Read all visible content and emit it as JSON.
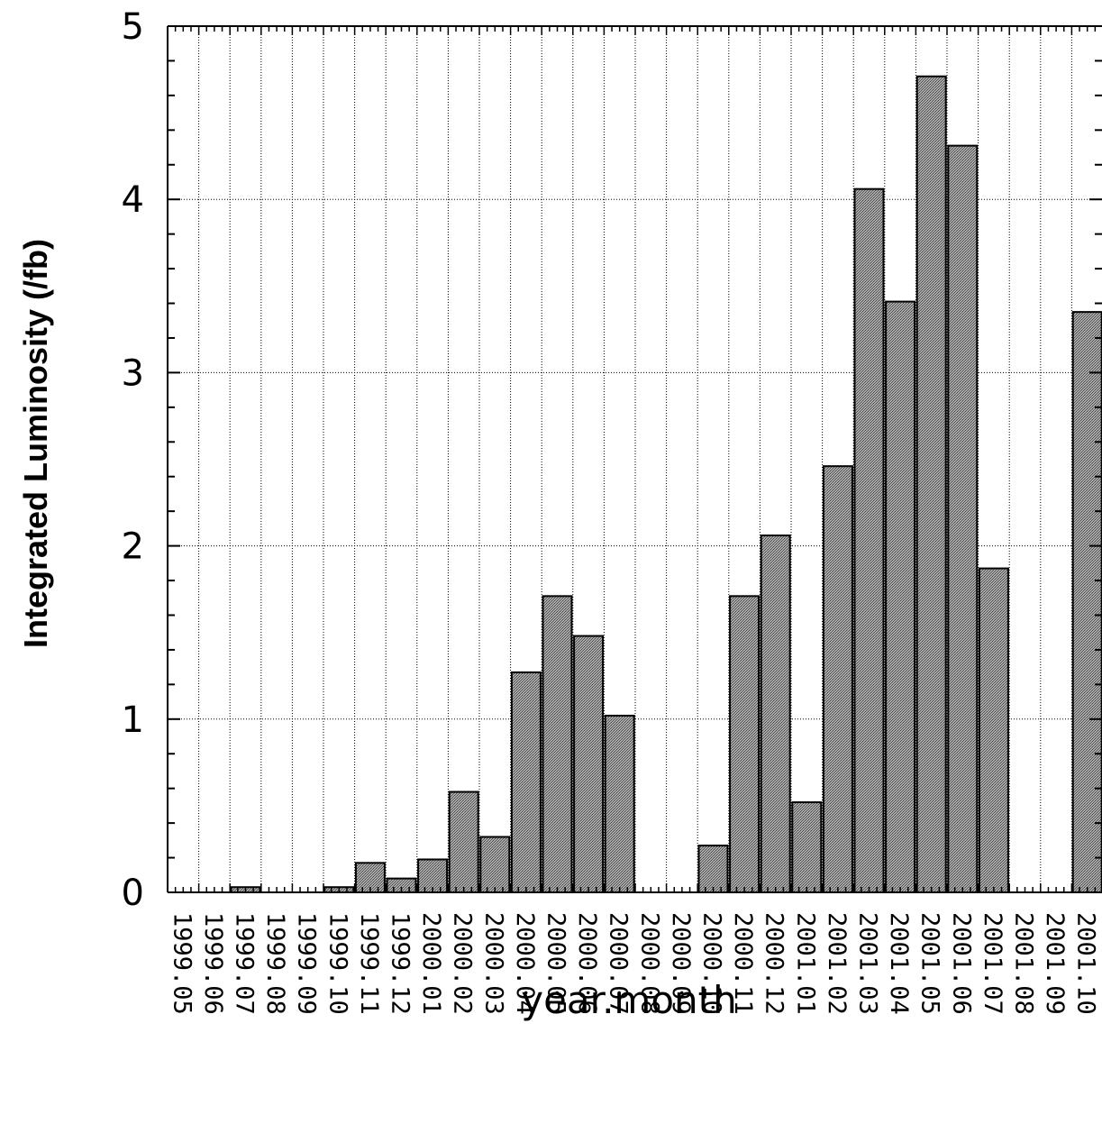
{
  "chart_data": {
    "type": "bar",
    "title": "",
    "xlabel": "year.month",
    "ylabel": "Integrated Luminosity (/fb)",
    "ylim": [
      0,
      5
    ],
    "yticks": [
      0,
      1,
      2,
      3,
      4,
      5
    ],
    "grid": true,
    "categories": [
      "1999.05",
      "1999.06",
      "1999.07",
      "1999.08",
      "1999.09",
      "1999.10",
      "1999.11",
      "1999.12",
      "2000.01",
      "2000.02",
      "2000.03",
      "2000.04",
      "2000.05",
      "2000.06",
      "2000.07",
      "2000.08",
      "2000.09",
      "2000.10",
      "2000.11",
      "2000.12",
      "2001.01",
      "2001.02",
      "2001.03",
      "2001.04",
      "2001.05",
      "2001.06",
      "2001.07",
      "2001.08",
      "2001.09",
      "2001.10"
    ],
    "values": [
      0,
      0,
      0.03,
      0,
      0,
      0.03,
      0.17,
      0.08,
      0.19,
      0.58,
      0.32,
      1.27,
      1.71,
      1.48,
      1.02,
      0,
      0,
      0.27,
      1.71,
      2.06,
      0.52,
      2.46,
      4.06,
      3.41,
      4.71,
      4.31,
      1.87,
      0,
      0,
      3.35
    ],
    "bar_color": "#8c8c8c"
  }
}
